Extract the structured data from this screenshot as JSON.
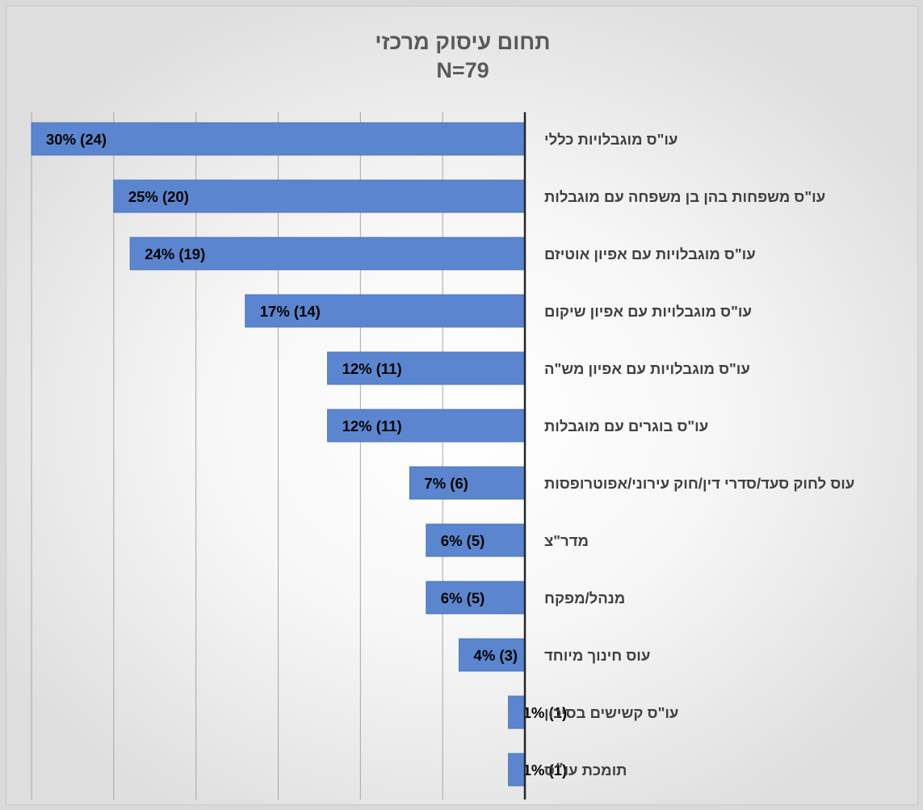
{
  "chart_data": {
    "type": "bar",
    "orientation": "horizontal",
    "title": "תחום עיסוק מרכזי",
    "subtitle": "N=79",
    "categories": [
      "עו\"ס מוגבלויות כללי",
      "עו\"ס משפחות בהן בן משפחה עם מוגבלות",
      "עו\"ס מוגבלויות עם אפיון אוטיזם",
      "עו\"ס מוגבלויות עם אפיון שיקום",
      "עו\"ס מוגבלויות עם אפיון מש\"ה",
      "עו\"ס בוגרים עם מוגבלות",
      "עוס לחוק סעד/סדרי דין/חוק עירוני/אפוטרופסות",
      "מדר\"צ",
      "מנהל/מפקח",
      "עוס חינוך מיוחד",
      "עו\"ס קשישים בסיכון",
      "תומכת עו״ס"
    ],
    "values": [
      30,
      25,
      24,
      17,
      12,
      12,
      7,
      6,
      6,
      4,
      1,
      1
    ],
    "counts": [
      24,
      20,
      19,
      14,
      11,
      11,
      6,
      5,
      5,
      3,
      1,
      1
    ],
    "data_labels": [
      "30% (24)",
      "25% (20)",
      "24% (19)",
      "17% (14)",
      "12% (11)",
      "12% (11)",
      "7% (6)",
      "6% (5)",
      "6% (5)",
      "4% (3)",
      "1% (1)",
      "1% (1)"
    ],
    "unit": "%",
    "xlim": [
      0,
      30
    ],
    "bar_direction": "right-to-left",
    "grid": true,
    "legend": "none",
    "colors": {
      "bar": "#5b86cf",
      "bar_edge": "#4a72b8",
      "axis": "#262626",
      "grid": "#a6a6a6"
    }
  }
}
